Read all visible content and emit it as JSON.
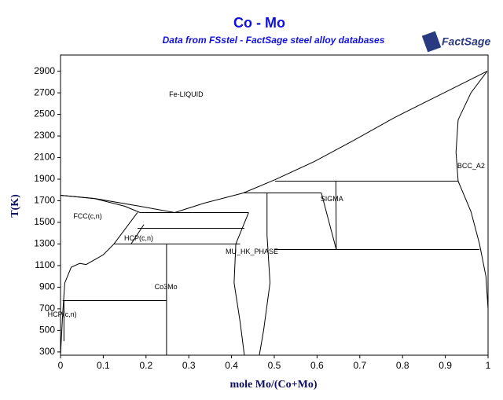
{
  "chart_data": {
    "type": "line",
    "title": "Co - Mo",
    "subtitle": "Data from FSstel - FactSage steel alloy databases",
    "logo": "FactSage",
    "x_label": "mole Mo/(Co+Mo)",
    "y_label": "T(K)",
    "xlim": [
      0,
      1
    ],
    "ylim": [
      270,
      3050
    ],
    "xticks": [
      0,
      0.1,
      0.2,
      0.3,
      0.4,
      0.5,
      0.6,
      0.7,
      0.8,
      0.9,
      1
    ],
    "yticks": [
      300,
      500,
      700,
      900,
      1100,
      1300,
      1500,
      1700,
      1900,
      2100,
      2300,
      2500,
      2700,
      2900
    ],
    "annotations": [
      {
        "text": "Fe-LIQUID",
        "x": 0.254,
        "y": 2682
      },
      {
        "text": "FCC(c,n)",
        "x": 0.03,
        "y": 1555
      },
      {
        "text": "HCP(c,n)",
        "x": 0.149,
        "y": 1351
      },
      {
        "text": "MU_HK_PHASE",
        "x": 0.386,
        "y": 1227
      },
      {
        "text": "SIGMA",
        "x": 0.608,
        "y": 1715
      },
      {
        "text": "BCC_A2",
        "x": 0.928,
        "y": 2020
      },
      {
        "text": "Co3Mo",
        "x": 0.22,
        "y": 900
      },
      {
        "text": "HCP(c,n)",
        "x": -0.03,
        "y": 645
      }
    ],
    "series": [
      {
        "color": "#000000",
        "x": [
          0,
          0.079,
          0.186,
          0.267,
          0.336,
          0.428,
          0.502,
          0.594,
          0.686,
          0.778,
          0.869,
          0.943,
          0.998
        ],
        "values": [
          1751,
          1722,
          1649,
          1591,
          1678,
          1773,
          1896,
          2064,
          2260,
          2464,
          2645,
          2791,
          2900
        ]
      },
      {
        "color": "#000000",
        "x": [
          0,
          0.08,
          0.15,
          0.186
        ],
        "values": [
          1751,
          1720,
          1650,
          1591
        ]
      },
      {
        "color": "#000000",
        "x": [
          0.998,
          0.96,
          0.93,
          0.925,
          0.93
        ],
        "values": [
          2900,
          2700,
          2450,
          2150,
          1882
        ]
      },
      {
        "color": "#000000",
        "x": [
          0.93,
          0.96,
          0.98,
          0.995,
          1.0
        ],
        "values": [
          1882,
          1600,
          1300,
          1000,
          700
        ]
      },
      {
        "color": "#000000",
        "x": [
          0.502,
          0.93
        ],
        "values": [
          1882,
          1882
        ]
      },
      {
        "color": "#000000",
        "x": [
          0.428,
          0.61
        ],
        "values": [
          1773,
          1773
        ]
      },
      {
        "color": "#000000",
        "x": [
          0.186,
          0.44
        ],
        "values": [
          1591,
          1591
        ]
      },
      {
        "color": "#000000",
        "x": [
          0.18,
          0.43
        ],
        "values": [
          1445,
          1445
        ]
      },
      {
        "color": "#000000",
        "x": [
          0.125,
          0.42
        ],
        "values": [
          1300,
          1300
        ]
      },
      {
        "color": "#000000",
        "x": [
          0.5,
          0.98
        ],
        "values": [
          1249,
          1249
        ]
      },
      {
        "color": "#000000",
        "x": [
          0.248,
          0.248
        ],
        "values": [
          1300,
          270
        ]
      },
      {
        "color": "#000000",
        "x": [
          0.005,
          0.248
        ],
        "values": [
          776,
          776
        ]
      },
      {
        "color": "#000000",
        "x": [
          0.44,
          0.41,
          0.406,
          0.42,
          0.43
        ],
        "values": [
          1591,
          1300,
          940,
          580,
          270
        ]
      },
      {
        "color": "#000000",
        "x": [
          0.483,
          0.483,
          0.49,
          0.475,
          0.465
        ],
        "values": [
          1773,
          1380,
          940,
          500,
          270
        ]
      },
      {
        "color": "#000000",
        "x": [
          0.61,
          0.645
        ],
        "values": [
          1773,
          1249
        ]
      },
      {
        "color": "#000000",
        "x": [
          0.644,
          0.645
        ],
        "values": [
          1882,
          1249
        ]
      },
      {
        "color": "#000000",
        "x": [
          0,
          0.005,
          0.01,
          0.025,
          0.045,
          0.06,
          0.1,
          0.125,
          0.18
        ],
        "values": [
          270,
          650,
          940,
          1085,
          1120,
          1110,
          1200,
          1300,
          1591
        ]
      },
      {
        "color": "#000000",
        "x": [
          0.165,
          0.195
        ],
        "values": [
          1300,
          1480
        ]
      },
      {
        "color": "#000000",
        "x": [
          0.008,
          0.008
        ],
        "values": [
          776,
          400
        ]
      }
    ]
  }
}
